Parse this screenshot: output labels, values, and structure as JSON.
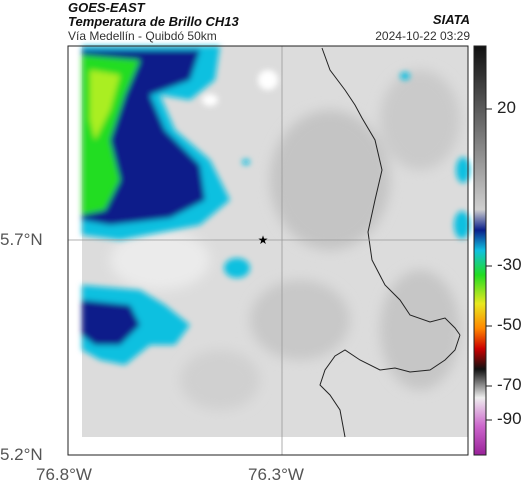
{
  "header": {
    "title_line1": "GOES-EAST",
    "title_line2": "Temperatura de Brillo CH13",
    "subtitle": "Vía Medellín - Quibdó 50km",
    "agency": "SIATA",
    "datetime": "2024-10-22 03:29"
  },
  "map": {
    "type": "satellite-image",
    "lat_ticks": [
      "5.7°N",
      "5.2°N"
    ],
    "lon_ticks": [
      "76.8°W",
      "76.3°W"
    ],
    "marker": "star-marker",
    "colors": {
      "cold_green": "#22dd22",
      "deep_blue": "#0a1f8a",
      "cyan": "#10c0e0",
      "warm_gray": "#d8d8d8",
      "border": "#222222"
    }
  },
  "colorbar": {
    "ticks": [
      "20",
      "-30",
      "-50",
      "-70",
      "-90"
    ]
  }
}
